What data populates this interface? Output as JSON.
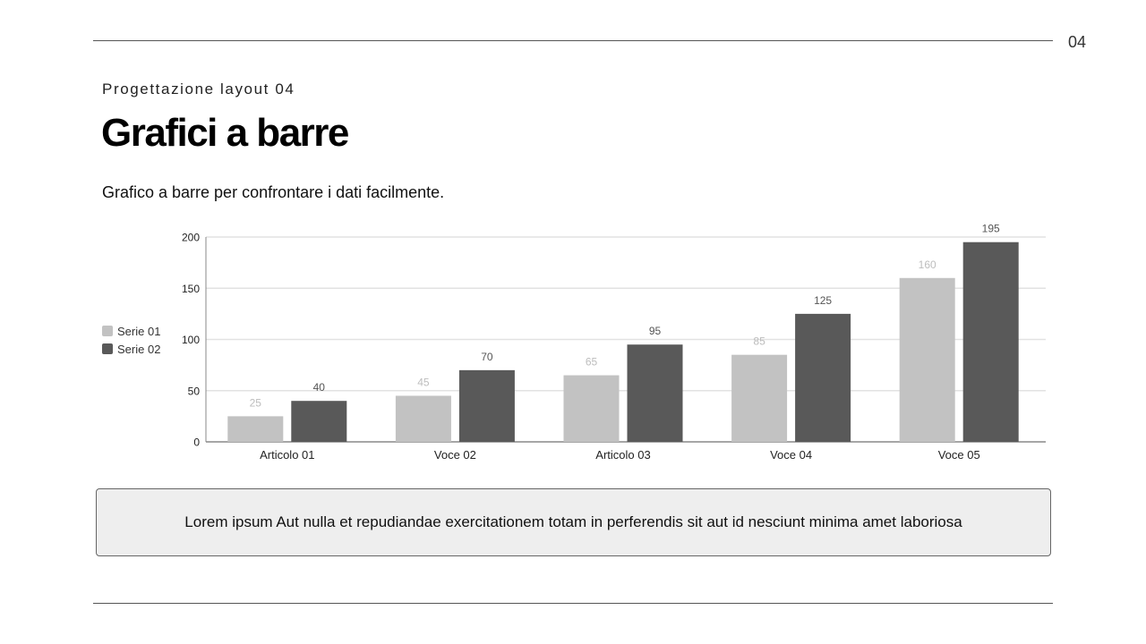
{
  "page": {
    "number": "04"
  },
  "header": {
    "subtitle": "Progettazione layout 04",
    "title": "Grafici a barre",
    "description": "Grafico a barre per confrontare i dati facilmente."
  },
  "legend": [
    {
      "label": "Serie 01",
      "color": "#c2c2c2"
    },
    {
      "label": "Serie 02",
      "color": "#595959"
    }
  ],
  "note": {
    "text": "Lorem ipsum Aut nulla et repudiandae exercitationem totam in perferendis sit aut id nesciunt minima amet laboriosa"
  },
  "colors": {
    "series1": "#c2c2c2",
    "series2": "#595959",
    "grid": "#e2e2e2",
    "axis": "#888888",
    "label1": "#bdbdbd",
    "label2": "#555555"
  },
  "chart_data": {
    "type": "bar",
    "title": "",
    "xlabel": "",
    "ylabel": "",
    "categories": [
      "Articolo 01",
      "Voce 02",
      "Articolo 03",
      "Voce 04",
      "Voce 05"
    ],
    "series": [
      {
        "name": "Serie 01",
        "values": [
          25,
          45,
          65,
          85,
          160
        ]
      },
      {
        "name": "Serie 02",
        "values": [
          40,
          70,
          95,
          125,
          195
        ]
      }
    ],
    "ylim": [
      0,
      200
    ],
    "yticks": [
      0,
      50,
      100,
      150,
      200
    ],
    "grid": true,
    "legend_position": "left"
  }
}
